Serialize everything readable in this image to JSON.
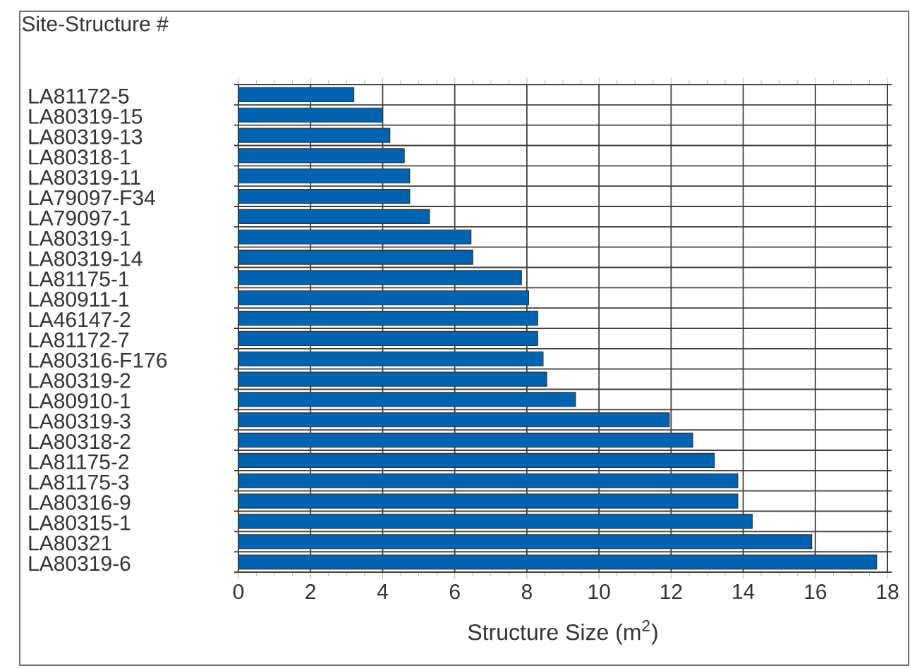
{
  "chart_data": {
    "type": "bar",
    "orientation": "horizontal",
    "ylabel": "Site-Structure #",
    "xlabel": "Structure Size (m$^{2}$)",
    "categories": [
      "LA81172-5",
      "LA80319-15",
      "LA80319-13",
      "LA80318-1",
      "LA80319-11",
      "LA79097-F34",
      "LA79097-1",
      "LA80319-1",
      "LA80319-14",
      "LA81175-1",
      "LA80911-1",
      "LA46147-2",
      "LA81172-7",
      "LA80316-F176",
      "LA80319-2",
      "LA80910-1",
      "LA80319-3",
      "LA80318-2",
      "LA81175-2",
      "LA81175-3",
      "LA80316-9",
      "LA80315-1",
      "LA80321",
      "LA80319-6"
    ],
    "values": [
      3.2,
      4.0,
      4.2,
      4.6,
      4.75,
      4.75,
      5.3,
      6.45,
      6.5,
      7.85,
      8.05,
      8.3,
      8.3,
      8.45,
      8.55,
      9.35,
      11.95,
      12.6,
      13.2,
      13.85,
      13.85,
      14.25,
      15.9,
      17.7
    ],
    "color": "#0063b1",
    "xlim": [
      0,
      18
    ],
    "xticks": [
      0,
      2,
      4,
      6,
      8,
      10,
      12,
      14,
      16,
      18
    ],
    "grid": true
  }
}
